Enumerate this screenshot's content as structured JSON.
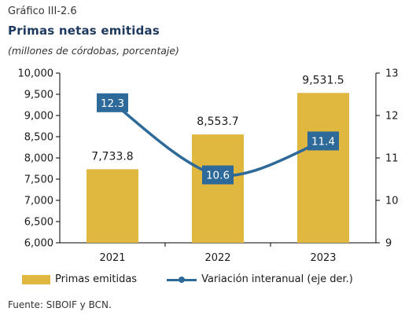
{
  "header": {
    "figure_label": "Gráfico III-2.6",
    "title": "Primas netas emitidas",
    "subtitle": "(millones de córdobas, porcentaje)"
  },
  "footer": {
    "source": "Fuente: SIBOIF y BCN."
  },
  "colors": {
    "bar": "#E0B73F",
    "line": "#2E6A99",
    "label_box": "#2E6A99",
    "label_text": "#FFFFFF",
    "axis": "#000000"
  },
  "chart_data": {
    "type": "bar",
    "categories": [
      "2021",
      "2022",
      "2023"
    ],
    "series": [
      {
        "name": "Primas emitidas",
        "type": "bar",
        "axis": "left",
        "values": [
          7733.8,
          8553.7,
          9531.5
        ],
        "labels": [
          "7,733.8",
          "8,553.7",
          "9,531.5"
        ]
      },
      {
        "name": "Variación interanual (eje der.)",
        "type": "line",
        "axis": "right",
        "values": [
          12.3,
          10.6,
          11.4
        ],
        "labels": [
          "12.3",
          "10.6",
          "11.4"
        ]
      }
    ],
    "y_left": {
      "min": 6000,
      "max": 10000,
      "ticks": [
        6000,
        6500,
        7000,
        7500,
        8000,
        8500,
        9000,
        9500,
        10000
      ],
      "tick_labels": [
        "6,000",
        "6,500",
        "7,000",
        "7,500",
        "8,000",
        "8,500",
        "9,000",
        "9,500",
        "10,000"
      ]
    },
    "y_right": {
      "min": 9,
      "max": 13,
      "ticks": [
        9,
        10,
        11,
        12,
        13
      ],
      "tick_labels": [
        "9",
        "10",
        "11",
        "12",
        "13"
      ]
    },
    "grid": false,
    "legend_position": "bottom"
  }
}
